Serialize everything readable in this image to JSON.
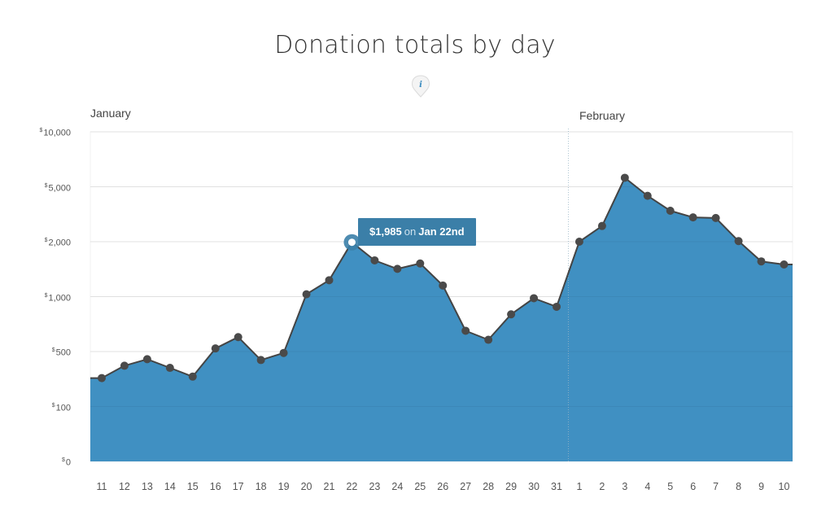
{
  "title": "Donation totals by day",
  "info_icon": "info-icon",
  "months": [
    {
      "label": "January"
    },
    {
      "label": "February"
    }
  ],
  "tooltip": {
    "amount": "$1,985",
    "connector": "on",
    "date": "Jan 22nd"
  },
  "colors": {
    "area": "#3a8cc0",
    "line": "#444444",
    "point": "#4a4a4a",
    "tooltip": "#3b7fa8"
  },
  "chart_data": {
    "type": "area",
    "title": "Donation totals by day",
    "xlabel": "",
    "ylabel": "",
    "y_scale": "log",
    "ylim": [
      0,
      10000
    ],
    "y_ticks": [
      {
        "value": 0,
        "currency": "$",
        "amount": "0"
      },
      {
        "value": 100,
        "currency": "$",
        "amount": "100"
      },
      {
        "value": 500,
        "currency": "$",
        "amount": "500"
      },
      {
        "value": 1000,
        "currency": "$",
        "amount": "1,000"
      },
      {
        "value": 2000,
        "currency": "$",
        "amount": "2,000"
      },
      {
        "value": 5000,
        "currency": "$",
        "amount": "5,000"
      },
      {
        "value": 10000,
        "currency": "$",
        "amount": "10,000"
      }
    ],
    "categories": [
      "11",
      "12",
      "13",
      "14",
      "15",
      "16",
      "17",
      "18",
      "19",
      "20",
      "21",
      "22",
      "23",
      "24",
      "25",
      "26",
      "27",
      "28",
      "29",
      "30",
      "31",
      "1",
      "2",
      "3",
      "4",
      "5",
      "6",
      "7",
      "8",
      "9",
      "10"
    ],
    "values": [
      230,
      330,
      400,
      310,
      240,
      520,
      600,
      390,
      480,
      1030,
      1230,
      1985,
      1580,
      1420,
      1520,
      1150,
      650,
      580,
      800,
      980,
      880,
      2000,
      2600,
      5600,
      4300,
      3350,
      3000,
      2970,
      2020,
      1560,
      1500
    ],
    "highlight_index": 11,
    "grid": true,
    "month_divider_after_index": 20
  }
}
